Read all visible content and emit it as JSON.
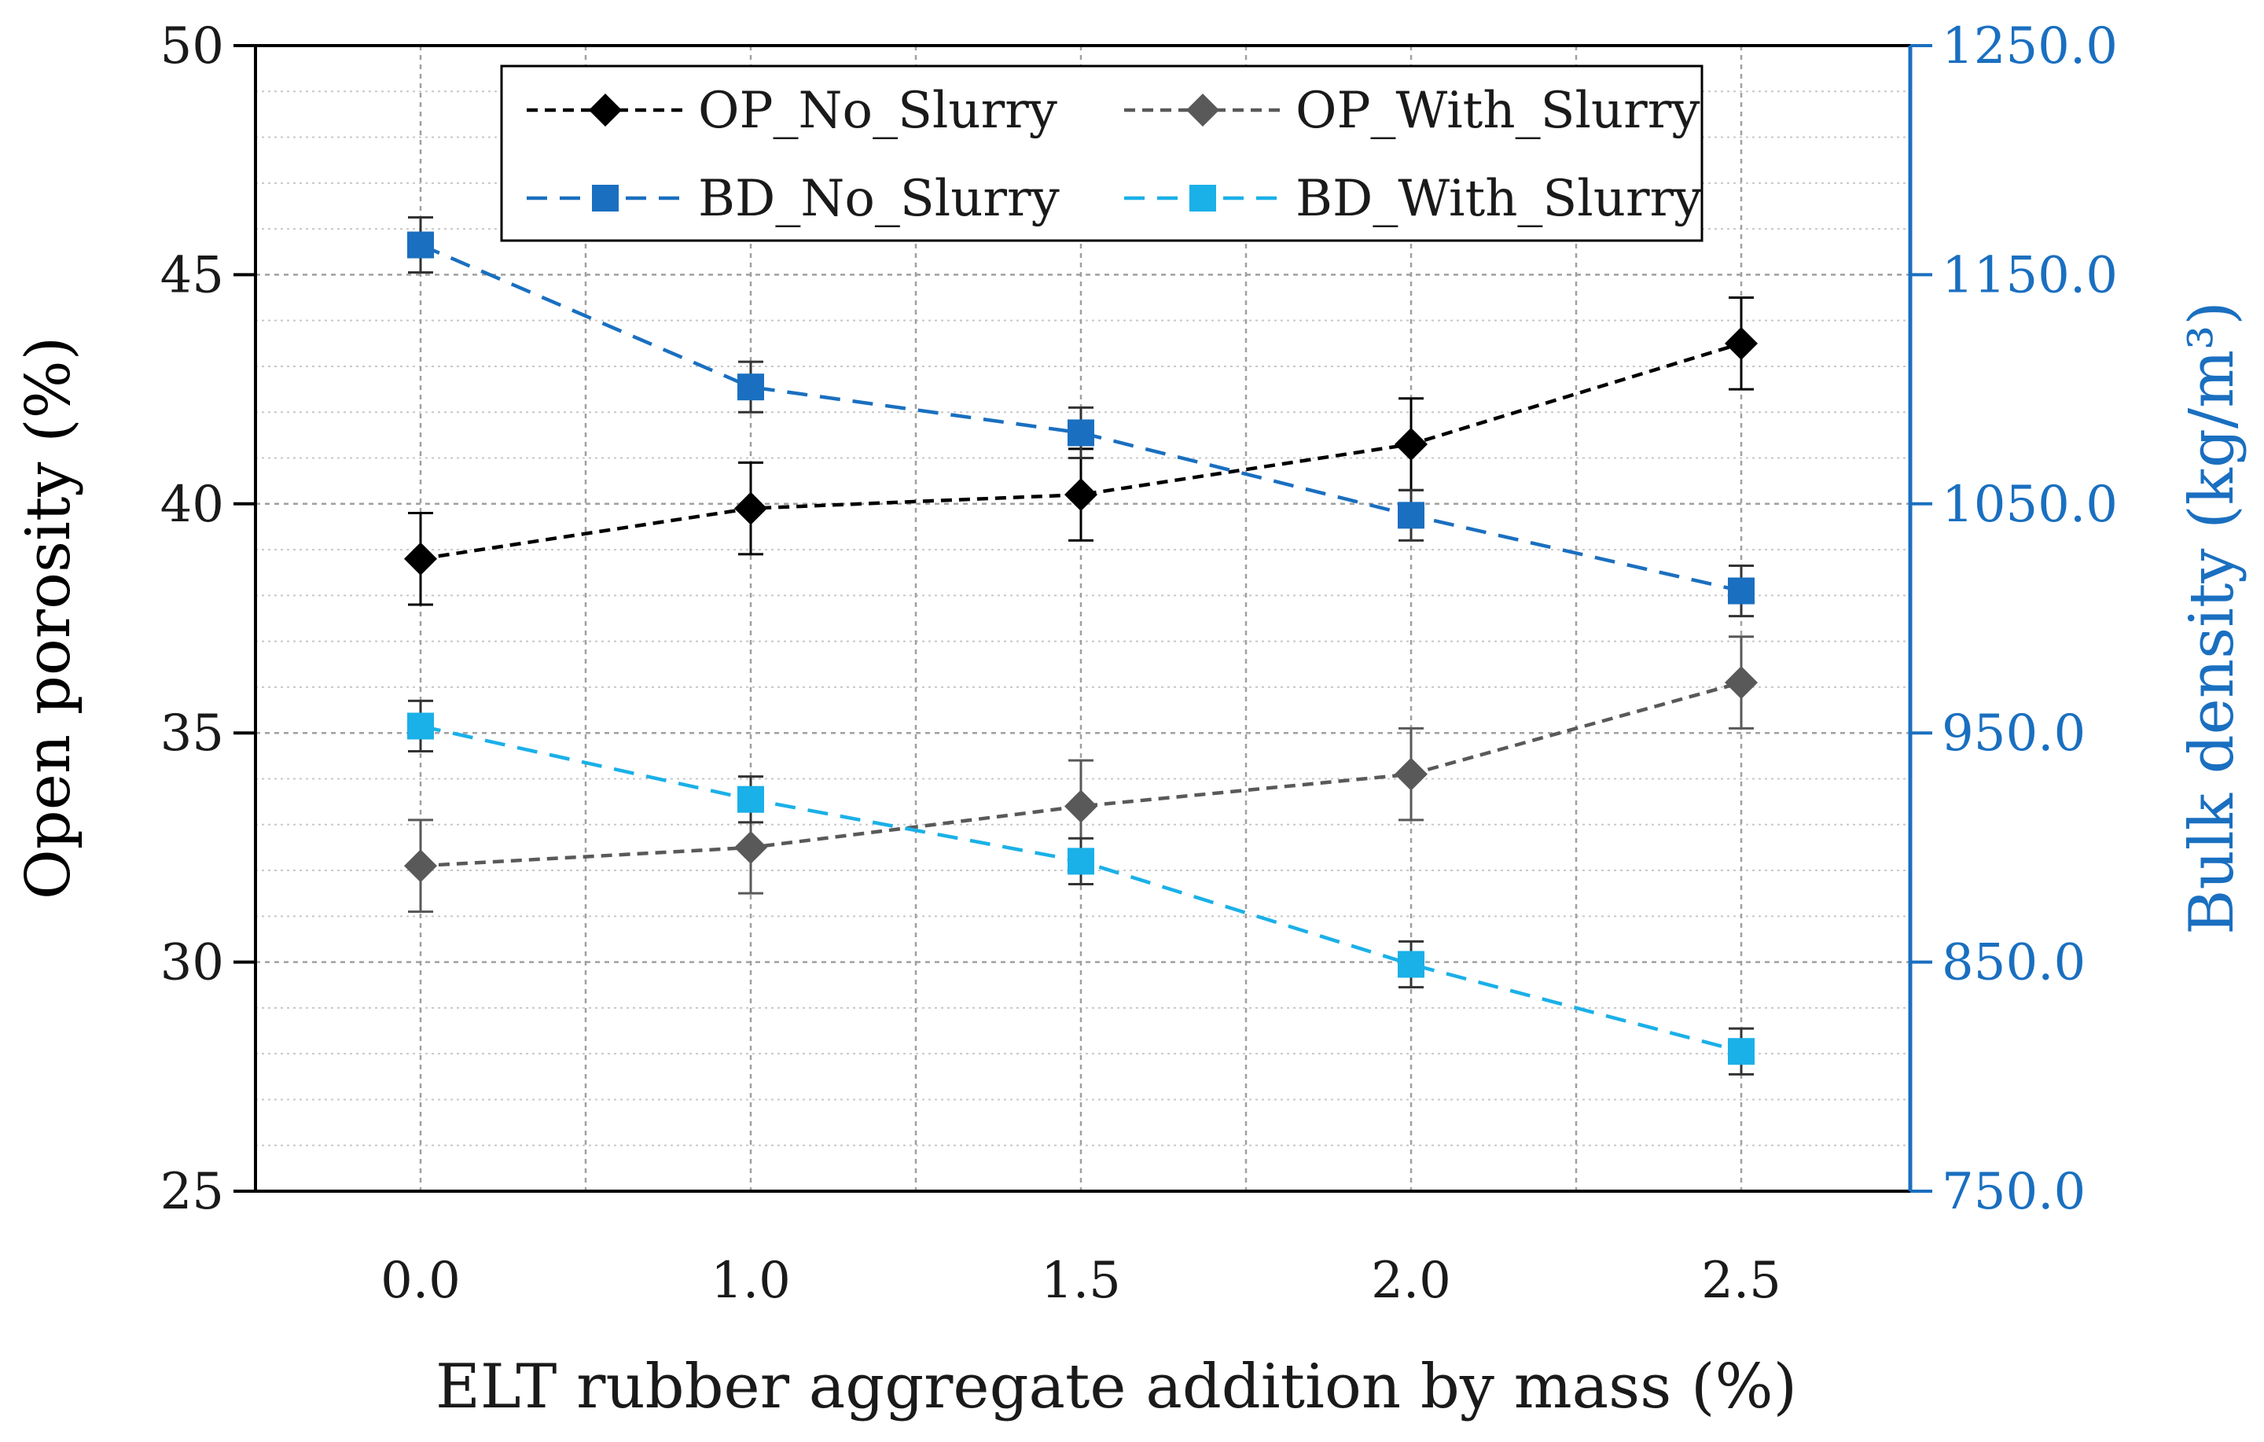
{
  "chart_data": {
    "type": "line",
    "x_categories": [
      "0.0",
      "1.0",
      "1.5",
      "2.0",
      "2.5"
    ],
    "x": [
      0.0,
      1.0,
      1.5,
      2.0,
      2.5
    ],
    "xlabel": "ELT rubber aggregate addition by mass (%)",
    "ylabel_left": "Open porosity (%)",
    "ylabel_right": "Bulk density (kg/m³)",
    "ylim_left": [
      25,
      50
    ],
    "ylim_right": [
      750.0,
      1250.0
    ],
    "yticks_left": [
      "25",
      "30",
      "35",
      "40",
      "45",
      "50"
    ],
    "yticks_right": [
      "750.0",
      "850.0",
      "950.0",
      "1050.0",
      "1150.0",
      "1250.0"
    ],
    "grid": true,
    "legend_position": "top",
    "series": [
      {
        "name": "OP_No_Slurry",
        "axis": "left",
        "marker": "diamond",
        "color": "#000000",
        "values": [
          38.8,
          39.9,
          40.2,
          41.3,
          43.5
        ],
        "errors": [
          1.0,
          1.0,
          1.0,
          1.0,
          1.0
        ]
      },
      {
        "name": "OP_With_Slurry",
        "axis": "left",
        "marker": "diamond",
        "color": "#595959",
        "values": [
          32.1,
          32.5,
          33.4,
          34.1,
          36.1
        ],
        "errors": [
          1.0,
          1.0,
          1.0,
          1.0,
          1.0
        ]
      },
      {
        "name": "BD_No_Slurry",
        "axis": "right",
        "marker": "square",
        "color": "#1a6fc0",
        "values": [
          1163.0,
          1101.0,
          1081.0,
          1045.0,
          1012.0
        ],
        "errors": [
          12.0,
          11.0,
          11.0,
          11.0,
          11.0
        ]
      },
      {
        "name": "BD_With_Slurry",
        "axis": "right",
        "marker": "square",
        "color": "#1ab0e8",
        "values": [
          953.0,
          921.0,
          894.0,
          849.0,
          811.0
        ],
        "errors": [
          11.0,
          10.0,
          10.0,
          10.0,
          10.0
        ]
      }
    ],
    "colors": {
      "right_axis": "#1a6fc0"
    }
  }
}
